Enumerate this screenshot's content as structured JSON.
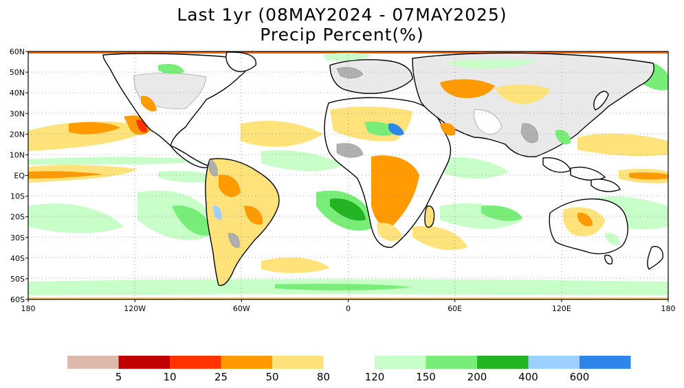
{
  "title": {
    "line1": "Last 1yr (08MAY2024 - 07MAY2025)",
    "line2": "Precip Percent(%)"
  },
  "map": {
    "lat_ticks": [
      "60N",
      "50N",
      "40N",
      "30N",
      "20N",
      "10N",
      "EQ",
      "10S",
      "20S",
      "30S",
      "40S",
      "50S",
      "60S"
    ],
    "lon_ticks": [
      "180",
      "120W",
      "60W",
      "0",
      "60E",
      "120E",
      "180"
    ],
    "lat_range": [
      -60,
      60
    ],
    "lon_range": [
      -180,
      180
    ],
    "grid": "dotted",
    "land_outline_color": "#000000",
    "no_data_color": "#b0b0b0"
  },
  "colorbar": {
    "low": {
      "colors": [
        "#dcb9aa",
        "#c00000",
        "#ff3300",
        "#ff9a00",
        "#ffe27a"
      ],
      "labels": [
        "5",
        "10",
        "25",
        "50",
        "80"
      ]
    },
    "high": {
      "colors": [
        "#c8ffc8",
        "#78ee78",
        "#22b422",
        "#9ed0ff",
        "#2f86ea"
      ],
      "labels": [
        "120",
        "150",
        "200",
        "400",
        "600"
      ]
    }
  }
}
